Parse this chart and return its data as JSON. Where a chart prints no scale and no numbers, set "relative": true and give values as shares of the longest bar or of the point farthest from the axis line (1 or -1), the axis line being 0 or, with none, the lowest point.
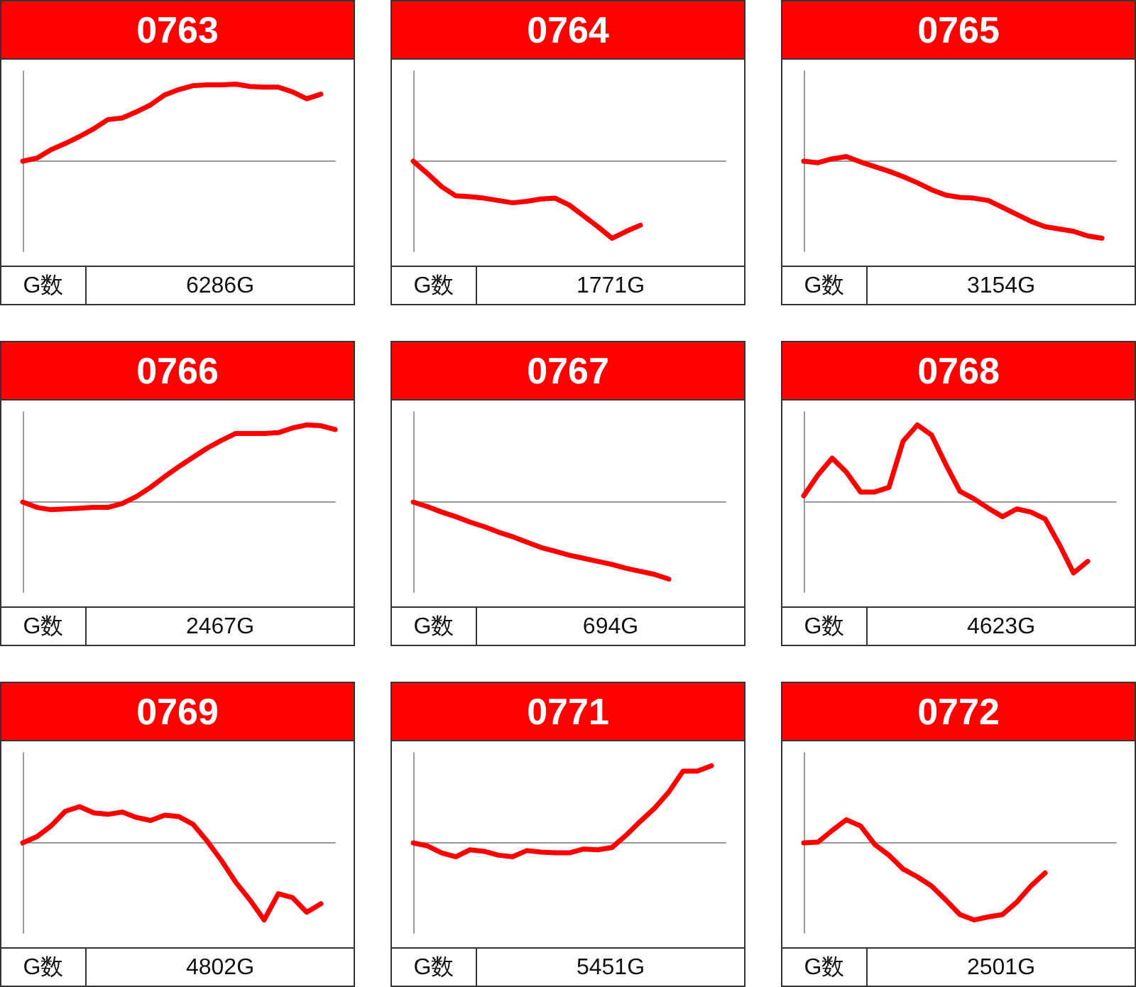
{
  "chart_data": [
    {
      "type": "line",
      "title": "0763",
      "relative": true,
      "marker": "none",
      "color": "#ff0000",
      "annotations": [
        "G数",
        "6286G"
      ],
      "categories": [
        null,
        null,
        null,
        null,
        null,
        null,
        null,
        null,
        null,
        null,
        null,
        null,
        null,
        null,
        null,
        null,
        null,
        null,
        null,
        null,
        null,
        null,
        null
      ],
      "values": [
        0,
        0.04,
        0.15,
        0.23,
        0.32,
        0.42,
        0.54,
        0.56,
        0.64,
        0.73,
        0.86,
        0.93,
        0.98,
        0.99,
        0.99,
        1,
        0.97,
        0.96,
        0.96,
        0.9,
        0.81,
        0.87,
        null
      ]
    },
    {
      "type": "line",
      "title": "0764",
      "relative": true,
      "marker": "none",
      "color": "#ff0000",
      "annotations": [
        "G数",
        "1771G"
      ],
      "categories": [
        null,
        null,
        null,
        null,
        null,
        null,
        null,
        null,
        null,
        null,
        null,
        null,
        null,
        null,
        null,
        null,
        null,
        null,
        null,
        null,
        null,
        null,
        null
      ],
      "values": [
        0,
        -0.16,
        -0.33,
        -0.45,
        -0.46,
        -0.48,
        -0.51,
        -0.54,
        -0.52,
        -0.49,
        -0.48,
        -0.57,
        -0.71,
        -0.85,
        -1,
        -0.91,
        -0.83,
        null,
        null,
        null,
        null,
        null,
        null
      ]
    },
    {
      "type": "line",
      "title": "0765",
      "relative": true,
      "marker": "none",
      "color": "#ff0000",
      "annotations": [
        "G数",
        "3154G"
      ],
      "categories": [
        null,
        null,
        null,
        null,
        null,
        null,
        null,
        null,
        null,
        null,
        null,
        null,
        null,
        null,
        null,
        null,
        null,
        null,
        null,
        null,
        null,
        null,
        null
      ],
      "values": [
        0,
        -0.02,
        0.03,
        0.06,
        -0.01,
        -0.07,
        -0.13,
        -0.2,
        -0.28,
        -0.37,
        -0.44,
        -0.47,
        -0.48,
        -0.51,
        -0.6,
        -0.69,
        -0.78,
        -0.85,
        -0.88,
        -0.91,
        -0.97,
        -1,
        null
      ]
    },
    {
      "type": "line",
      "title": "0766",
      "relative": true,
      "marker": "none",
      "color": "#ff0000",
      "annotations": [
        "G数",
        "2467G"
      ],
      "categories": [
        null,
        null,
        null,
        null,
        null,
        null,
        null,
        null,
        null,
        null,
        null,
        null,
        null,
        null,
        null,
        null,
        null,
        null,
        null,
        null,
        null,
        null,
        null
      ],
      "values": [
        0,
        -0.07,
        -0.1,
        -0.09,
        -0.08,
        -0.07,
        -0.07,
        -0.02,
        0.07,
        0.19,
        0.33,
        0.46,
        0.58,
        0.7,
        0.8,
        0.89,
        0.89,
        0.89,
        0.9,
        0.96,
        1,
        0.99,
        0.94
      ]
    },
    {
      "type": "line",
      "title": "0767",
      "relative": true,
      "marker": "none",
      "color": "#ff0000",
      "annotations": [
        "G数",
        "694G"
      ],
      "categories": [
        null,
        null,
        null,
        null,
        null,
        null,
        null,
        null,
        null,
        null,
        null,
        null,
        null,
        null,
        null,
        null,
        null,
        null,
        null,
        null,
        null,
        null,
        null
      ],
      "values": [
        0,
        -0.06,
        -0.13,
        -0.19,
        -0.26,
        -0.32,
        -0.39,
        -0.45,
        -0.52,
        -0.59,
        -0.64,
        -0.69,
        -0.73,
        -0.77,
        -0.81,
        -0.86,
        -0.9,
        -0.94,
        -1,
        null,
        null,
        null,
        null
      ]
    },
    {
      "type": "line",
      "title": "0768",
      "relative": true,
      "marker": "none",
      "color": "#ff0000",
      "annotations": [
        "G数",
        "4623G"
      ],
      "categories": [
        null,
        null,
        null,
        null,
        null,
        null,
        null,
        null,
        null,
        null,
        null,
        null,
        null,
        null,
        null,
        null,
        null,
        null,
        null,
        null,
        null,
        null,
        null
      ],
      "values": [
        0.08,
        0.35,
        0.57,
        0.39,
        0.13,
        0.13,
        0.19,
        0.79,
        1,
        0.87,
        0.49,
        0.14,
        0.04,
        -0.08,
        -0.19,
        -0.09,
        -0.13,
        -0.22,
        -0.55,
        -0.92,
        -0.77,
        null,
        null
      ]
    },
    {
      "type": "line",
      "title": "0769",
      "relative": true,
      "marker": "none",
      "color": "#ff0000",
      "annotations": [
        "G数",
        "4802G"
      ],
      "categories": [
        null,
        null,
        null,
        null,
        null,
        null,
        null,
        null,
        null,
        null,
        null,
        null,
        null,
        null,
        null,
        null,
        null,
        null,
        null,
        null,
        null,
        null,
        null
      ],
      "values": [
        0,
        0.08,
        0.22,
        0.41,
        0.47,
        0.39,
        0.37,
        0.4,
        0.33,
        0.29,
        0.36,
        0.34,
        0.24,
        0.02,
        -0.23,
        -0.51,
        -0.74,
        -1,
        -0.66,
        -0.71,
        -0.9,
        -0.79,
        null
      ]
    },
    {
      "type": "line",
      "title": "0771",
      "relative": true,
      "marker": "none",
      "color": "#ff0000",
      "annotations": [
        "G数",
        "5451G"
      ],
      "categories": [
        null,
        null,
        null,
        null,
        null,
        null,
        null,
        null,
        null,
        null,
        null,
        null,
        null,
        null,
        null,
        null,
        null,
        null,
        null,
        null,
        null,
        null,
        null
      ],
      "values": [
        0,
        -0.04,
        -0.13,
        -0.18,
        -0.09,
        -0.11,
        -0.16,
        -0.18,
        -0.1,
        -0.12,
        -0.13,
        -0.13,
        -0.08,
        -0.09,
        -0.06,
        0.1,
        0.28,
        0.45,
        0.66,
        0.93,
        0.93,
        1,
        null
      ]
    },
    {
      "type": "line",
      "title": "0772",
      "relative": true,
      "marker": "none",
      "color": "#ff0000",
      "annotations": [
        "G数",
        "2501G"
      ],
      "categories": [
        null,
        null,
        null,
        null,
        null,
        null,
        null,
        null,
        null,
        null,
        null,
        null,
        null,
        null,
        null,
        null,
        null,
        null,
        null,
        null,
        null,
        null,
        null
      ],
      "values": [
        0,
        0.01,
        0.16,
        0.3,
        0.22,
        -0.02,
        -0.16,
        -0.34,
        -0.44,
        -0.56,
        -0.74,
        -0.93,
        -1,
        -0.96,
        -0.93,
        -0.77,
        -0.56,
        -0.39,
        null,
        null,
        null,
        null,
        null
      ]
    }
  ]
}
